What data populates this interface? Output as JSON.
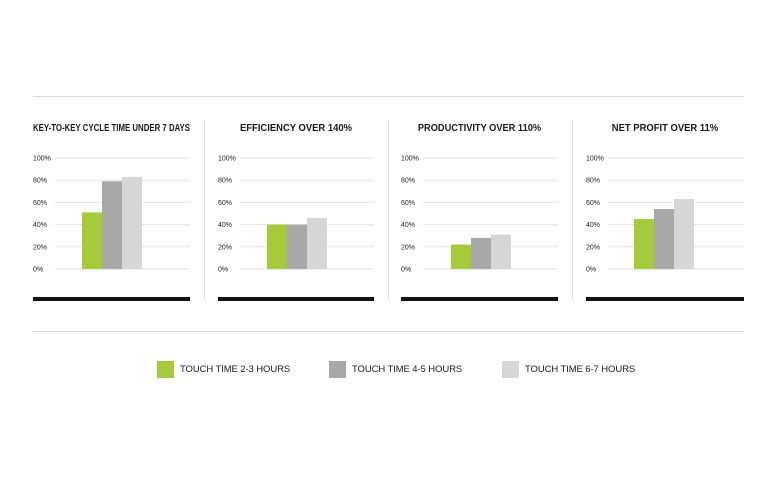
{
  "legend": {
    "items": [
      {
        "label": "TOUCH TIME 2-3 HOURS",
        "color": "#a5cb3a"
      },
      {
        "label": "TOUCH TIME 4-5 HOURS",
        "color": "#a8a8a8"
      },
      {
        "label": "TOUCH TIME 6-7 HOURS",
        "color": "#d6d6d6"
      }
    ]
  },
  "chart_data": [
    {
      "type": "bar",
      "title": "KEY-TO-KEY CYCLE TIME UNDER 7 DAYS",
      "y_ticks": [
        "100%",
        "80%",
        "60%",
        "40%",
        "20%",
        "0%"
      ],
      "ylim": [
        0,
        100
      ],
      "grid": true,
      "series": [
        {
          "name": "TOUCH TIME 2-3 HOURS",
          "values": [
            51
          ]
        },
        {
          "name": "TOUCH TIME 4-5 HOURS",
          "values": [
            79
          ]
        },
        {
          "name": "TOUCH TIME 6-7 HOURS",
          "values": [
            83
          ]
        }
      ]
    },
    {
      "type": "bar",
      "title": "EFFICIENCY OVER 140%",
      "y_ticks": [
        "100%",
        "80%",
        "60%",
        "40%",
        "20%",
        "0%"
      ],
      "ylim": [
        0,
        100
      ],
      "grid": true,
      "series": [
        {
          "name": "TOUCH TIME 2-3 HOURS",
          "values": [
            40
          ]
        },
        {
          "name": "TOUCH TIME 4-5 HOURS",
          "values": [
            40
          ]
        },
        {
          "name": "TOUCH TIME 6-7 HOURS",
          "values": [
            46
          ]
        }
      ]
    },
    {
      "type": "bar",
      "title": "PRODUCTIVITY OVER 110%",
      "y_ticks": [
        "100%",
        "80%",
        "60%",
        "40%",
        "20%",
        "0%"
      ],
      "ylim": [
        0,
        100
      ],
      "grid": true,
      "series": [
        {
          "name": "TOUCH TIME 2-3 HOURS",
          "values": [
            22
          ]
        },
        {
          "name": "TOUCH TIME 4-5 HOURS",
          "values": [
            28
          ]
        },
        {
          "name": "TOUCH TIME 6-7 HOURS",
          "values": [
            31
          ]
        }
      ]
    },
    {
      "type": "bar",
      "title": "NET PROFIT OVER 11%",
      "y_ticks": [
        "100%",
        "80%",
        "60%",
        "40%",
        "20%",
        "0%"
      ],
      "ylim": [
        0,
        100
      ],
      "grid": true,
      "series": [
        {
          "name": "TOUCH TIME 2-3 HOURS",
          "values": [
            45
          ]
        },
        {
          "name": "TOUCH TIME 4-5 HOURS",
          "values": [
            54
          ]
        },
        {
          "name": "TOUCH TIME 6-7 HOURS",
          "values": [
            63
          ]
        }
      ]
    }
  ]
}
